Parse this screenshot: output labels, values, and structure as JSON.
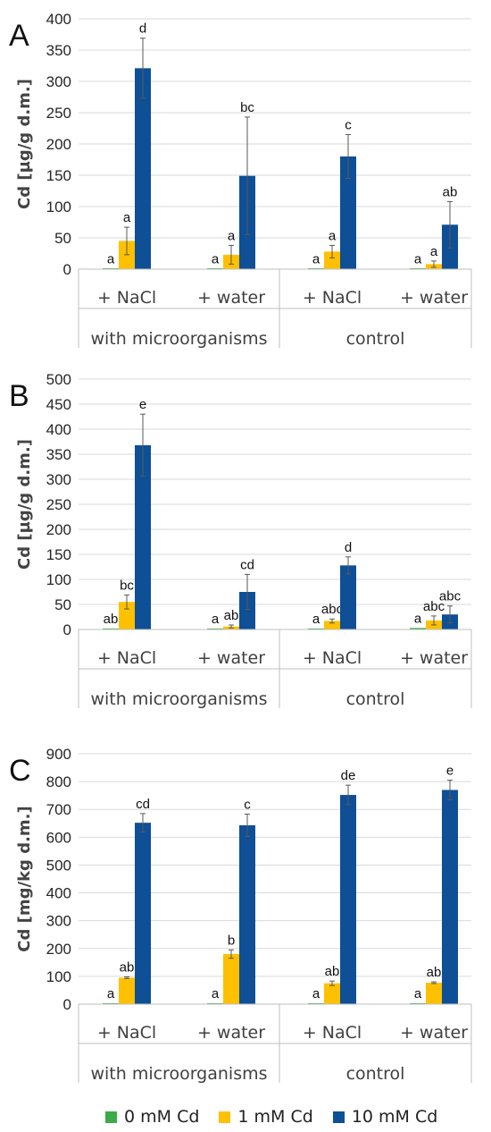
{
  "colors": {
    "s0": "#3aab48",
    "s1": "#ffc000",
    "s2": "#0e4f96"
  },
  "legend": {
    "s0": "0 mM Cd",
    "s1": "1 mM Cd",
    "s2": "10 mM Cd"
  },
  "chart_data": [
    {
      "type": "bar",
      "panel_label": "A",
      "ylabel": "Cd [µg/g d.m.]",
      "ylim": [
        0,
        400
      ],
      "yticks": [
        0,
        50,
        100,
        150,
        200,
        250,
        300,
        350,
        400
      ],
      "grid": true,
      "categories": [
        "+ NaCl",
        "+ water",
        "+ NaCl",
        "+ water"
      ],
      "groups": [
        "with microorganisms",
        "control"
      ],
      "series": [
        {
          "name": "0 mM Cd",
          "values": [
            0.5,
            0.5,
            1,
            0.5
          ],
          "errors": [
            0,
            0,
            0,
            0
          ],
          "letters": [
            "a",
            "a",
            "a",
            "a"
          ]
        },
        {
          "name": "1 mM Cd",
          "values": [
            45,
            23,
            28,
            8
          ],
          "errors": [
            22,
            15,
            10,
            5
          ],
          "letters": [
            "a",
            "a",
            "a",
            "a"
          ]
        },
        {
          "name": "10 mM Cd",
          "values": [
            321,
            149,
            180,
            71
          ],
          "errors": [
            48,
            94,
            35,
            37
          ],
          "letters": [
            "d",
            "bc",
            "c",
            "ab"
          ]
        }
      ]
    },
    {
      "type": "bar",
      "panel_label": "B",
      "ylabel": "Cd [µg/g d.m.]",
      "ylim": [
        0,
        500
      ],
      "yticks": [
        0,
        50,
        100,
        150,
        200,
        250,
        300,
        350,
        400,
        450,
        500
      ],
      "grid": true,
      "categories": [
        "+ NaCl",
        "+ water",
        "+ NaCl",
        "+ water"
      ],
      "groups": [
        "with microorganisms",
        "control"
      ],
      "series": [
        {
          "name": "0 mM Cd",
          "values": [
            2,
            2,
            2,
            3
          ],
          "errors": [
            0,
            0,
            0,
            0
          ],
          "letters": [
            "ab",
            "a",
            "a",
            "a"
          ]
        },
        {
          "name": "1 mM Cd",
          "values": [
            55,
            6,
            17,
            18
          ],
          "errors": [
            14,
            3,
            4,
            9
          ],
          "letters": [
            "bc",
            "ab",
            "abc",
            "abc"
          ]
        },
        {
          "name": "10 mM Cd",
          "values": [
            368,
            75,
            128,
            30
          ],
          "errors": [
            62,
            35,
            17,
            17
          ],
          "letters": [
            "e",
            "cd",
            "d",
            "abc"
          ]
        }
      ]
    },
    {
      "type": "bar",
      "panel_label": "C",
      "ylabel": "Cd [mg/kg d.m.]",
      "ylim": [
        0,
        900
      ],
      "yticks": [
        0,
        100,
        200,
        300,
        400,
        500,
        600,
        700,
        800,
        900
      ],
      "grid": true,
      "categories": [
        "+ NaCl",
        "+ water",
        "+ NaCl",
        "+ water"
      ],
      "groups": [
        "with microorganisms",
        "control"
      ],
      "series": [
        {
          "name": "0 mM Cd",
          "values": [
            3,
            3,
            3,
            3
          ],
          "errors": [
            0,
            0,
            0,
            0
          ],
          "letters": [
            "a",
            "a",
            "a",
            "a"
          ]
        },
        {
          "name": "1 mM Cd",
          "values": [
            95,
            180,
            75,
            77
          ],
          "errors": [
            3,
            15,
            8,
            3
          ],
          "letters": [
            "ab",
            "b",
            "ab",
            "ab"
          ]
        },
        {
          "name": "10 mM Cd",
          "values": [
            652,
            643,
            752,
            770
          ],
          "errors": [
            33,
            40,
            35,
            35
          ],
          "letters": [
            "cd",
            "c",
            "de",
            "e"
          ]
        }
      ]
    }
  ]
}
